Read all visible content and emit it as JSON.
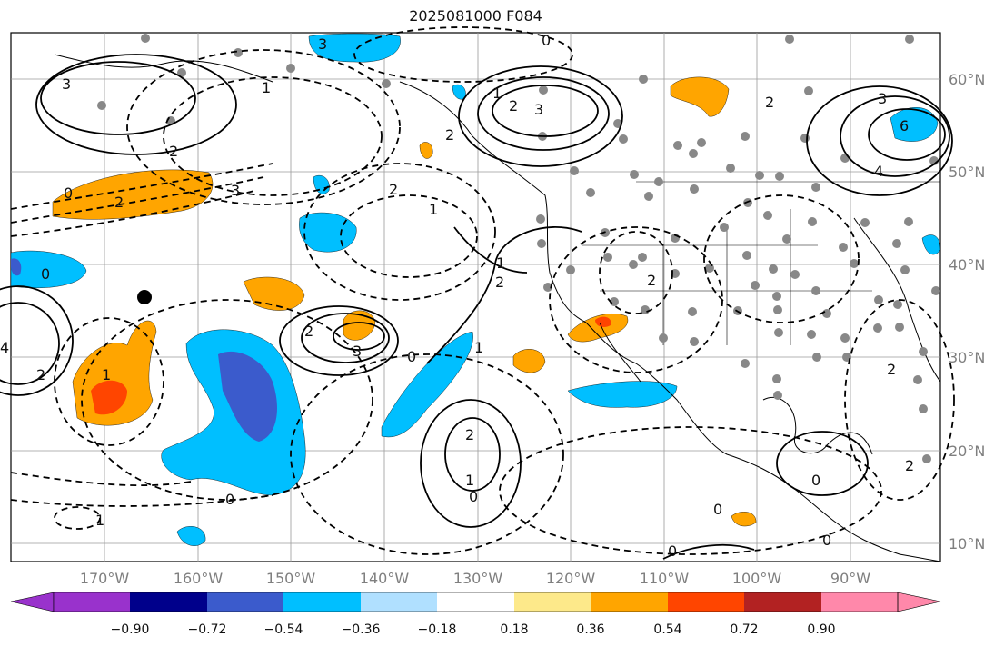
{
  "title": "2025081000 F084",
  "map": {
    "lon_labels": [
      "170°W",
      "160°W",
      "150°W",
      "140°W",
      "130°W",
      "120°W",
      "110°W",
      "100°W",
      "90°W"
    ],
    "lat_labels": [
      "60°N",
      "50°N",
      "40°N",
      "30°N",
      "20°N",
      "10°N"
    ],
    "contour_labels": [
      "3",
      "2",
      "0",
      "2",
      "3",
      "2",
      "1",
      "3",
      "0",
      "2",
      "3",
      "4",
      "2",
      "1",
      "2",
      "3",
      "6",
      "4",
      "3",
      "2",
      "0",
      "1",
      "2",
      "1",
      "0",
      "2",
      "2",
      "1",
      "0",
      "0",
      "1",
      "2",
      "0",
      "2",
      "1",
      "0",
      "0",
      "1",
      "2",
      "0"
    ]
  },
  "colorbar": {
    "ticks": [
      "−0.90",
      "−0.72",
      "−0.54",
      "−0.36",
      "−0.18",
      "0.18",
      "0.36",
      "0.54",
      "0.72",
      "0.90"
    ],
    "colors": [
      "#9932cc",
      "#00008b",
      "#3b5bcc",
      "#00bfff",
      "#b0e0ff",
      "#ffffff",
      "#fde98a",
      "#ffa500",
      "#ff4500",
      "#b22222",
      "#ff88aa",
      "#ff88aa"
    ]
  }
}
